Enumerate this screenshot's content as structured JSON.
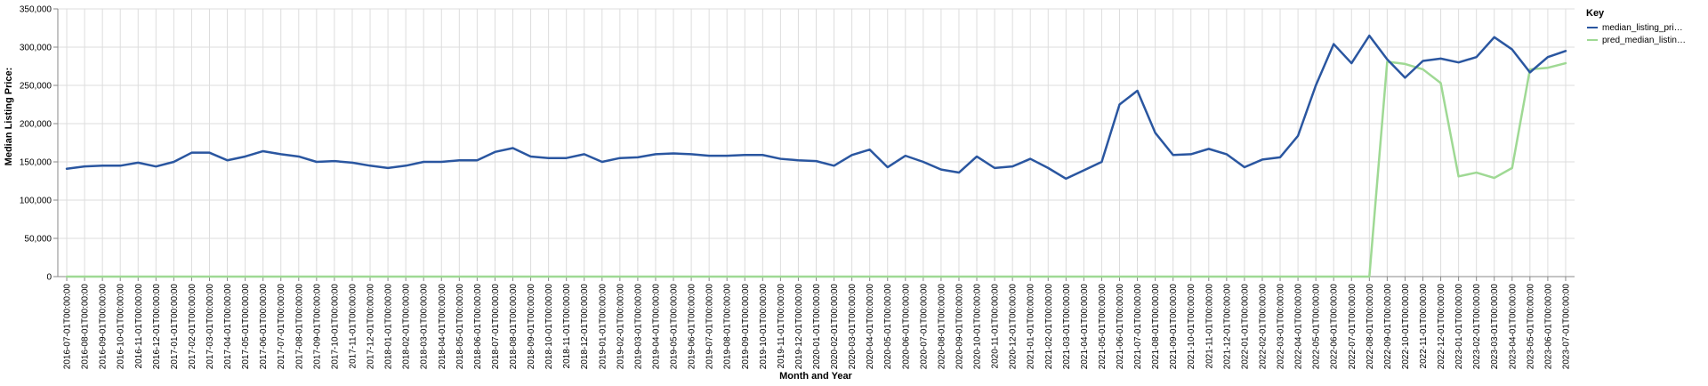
{
  "chart_data": {
    "type": "line",
    "xlabel": "Month and Year",
    "ylabel": "Median Listing Price:",
    "ylim": [
      0,
      350000
    ],
    "yticks": [
      "0",
      "50,000",
      "100,000",
      "150,000",
      "200,000",
      "250,000",
      "300,000",
      "350,000"
    ],
    "grid": true,
    "legend": {
      "title": "Key",
      "placement": "top-right",
      "labels": [
        "median_listing_pri…",
        "pred_median_listin…"
      ]
    },
    "x": [
      "2016-07-01T00:00:00",
      "2016-08-01T00:00:00",
      "2016-09-01T00:00:00",
      "2016-10-01T00:00:00",
      "2016-11-01T00:00:00",
      "2016-12-01T00:00:00",
      "2017-01-01T00:00:00",
      "2017-02-01T00:00:00",
      "2017-03-01T00:00:00",
      "2017-04-01T00:00:00",
      "2017-05-01T00:00:00",
      "2017-06-01T00:00:00",
      "2017-07-01T00:00:00",
      "2017-08-01T00:00:00",
      "2017-09-01T00:00:00",
      "2017-10-01T00:00:00",
      "2017-11-01T00:00:00",
      "2017-12-01T00:00:00",
      "2018-01-01T00:00:00",
      "2018-02-01T00:00:00",
      "2018-03-01T00:00:00",
      "2018-04-01T00:00:00",
      "2018-05-01T00:00:00",
      "2018-06-01T00:00:00",
      "2018-07-01T00:00:00",
      "2018-08-01T00:00:00",
      "2018-09-01T00:00:00",
      "2018-10-01T00:00:00",
      "2018-11-01T00:00:00",
      "2018-12-01T00:00:00",
      "2019-01-01T00:00:00",
      "2019-02-01T00:00:00",
      "2019-03-01T00:00:00",
      "2019-04-01T00:00:00",
      "2019-05-01T00:00:00",
      "2019-06-01T00:00:00",
      "2019-07-01T00:00:00",
      "2019-08-01T00:00:00",
      "2019-09-01T00:00:00",
      "2019-10-01T00:00:00",
      "2019-11-01T00:00:00",
      "2019-12-01T00:00:00",
      "2020-01-01T00:00:00",
      "2020-02-01T00:00:00",
      "2020-03-01T00:00:00",
      "2020-04-01T00:00:00",
      "2020-05-01T00:00:00",
      "2020-06-01T00:00:00",
      "2020-07-01T00:00:00",
      "2020-08-01T00:00:00",
      "2020-09-01T00:00:00",
      "2020-10-01T00:00:00",
      "2020-11-01T00:00:00",
      "2020-12-01T00:00:00",
      "2021-01-01T00:00:00",
      "2021-02-01T00:00:00",
      "2021-03-01T00:00:00",
      "2021-04-01T00:00:00",
      "2021-05-01T00:00:00",
      "2021-06-01T00:00:00",
      "2021-07-01T00:00:00",
      "2021-08-01T00:00:00",
      "2021-09-01T00:00:00",
      "2021-10-01T00:00:00",
      "2021-11-01T00:00:00",
      "2021-12-01T00:00:00",
      "2022-01-01T00:00:00",
      "2022-02-01T00:00:00",
      "2022-03-01T00:00:00",
      "2022-04-01T00:00:00",
      "2022-05-01T00:00:00",
      "2022-06-01T00:00:00",
      "2022-07-01T00:00:00",
      "2022-08-01T00:00:00",
      "2022-09-01T00:00:00",
      "2022-10-01T00:00:00",
      "2022-11-01T00:00:00",
      "2022-12-01T00:00:00",
      "2023-01-01T00:00:00",
      "2023-02-01T00:00:00",
      "2023-03-01T00:00:00",
      "2023-04-01T00:00:00",
      "2023-05-01T00:00:00",
      "2023-06-01T00:00:00",
      "2023-07-01T00:00:00"
    ],
    "series": [
      {
        "name": "median_listing_pri…",
        "color": "#2a56a0",
        "values": [
          141000,
          144000,
          145000,
          145000,
          149000,
          144000,
          150000,
          162000,
          162000,
          152000,
          157000,
          164000,
          160000,
          157000,
          150000,
          151000,
          149000,
          145000,
          142000,
          145000,
          150000,
          150000,
          152000,
          152000,
          163000,
          168000,
          157000,
          155000,
          155000,
          160000,
          150000,
          155000,
          156000,
          160000,
          161000,
          160000,
          158000,
          158000,
          159000,
          159000,
          154000,
          152000,
          151000,
          145000,
          159000,
          166000,
          143000,
          158000,
          150000,
          140000,
          136000,
          157000,
          142000,
          144000,
          154000,
          142000,
          128000,
          139000,
          150000,
          225000,
          243000,
          188000,
          159000,
          160000,
          167000,
          160000,
          143000,
          153000,
          156000,
          184000,
          250000,
          304000,
          279000,
          315000,
          284000,
          260000,
          282000,
          285000,
          280000,
          287000,
          313000,
          297000,
          267000,
          287000,
          295000
        ]
      },
      {
        "name": "pred_median_listin…",
        "color": "#9fd994",
        "values": [
          0,
          0,
          0,
          0,
          0,
          0,
          0,
          0,
          0,
          0,
          0,
          0,
          0,
          0,
          0,
          0,
          0,
          0,
          0,
          0,
          0,
          0,
          0,
          0,
          0,
          0,
          0,
          0,
          0,
          0,
          0,
          0,
          0,
          0,
          0,
          0,
          0,
          0,
          0,
          0,
          0,
          0,
          0,
          0,
          0,
          0,
          0,
          0,
          0,
          0,
          0,
          0,
          0,
          0,
          0,
          0,
          0,
          0,
          0,
          0,
          0,
          0,
          0,
          0,
          0,
          0,
          0,
          0,
          0,
          0,
          0,
          0,
          0,
          0,
          281000,
          278000,
          271000,
          253000,
          131000,
          136000,
          129000,
          142000,
          271000,
          273000,
          279000
        ]
      }
    ]
  }
}
